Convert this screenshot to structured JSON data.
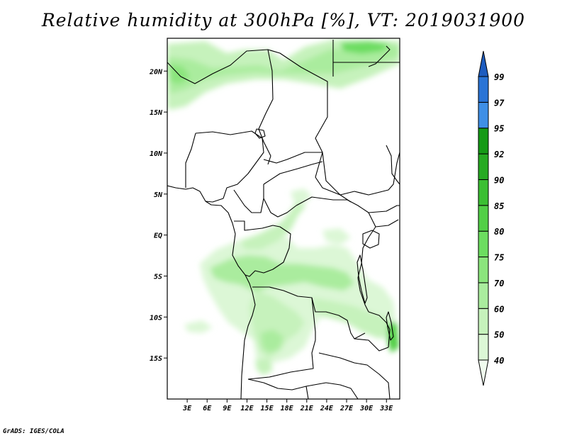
{
  "title": "Relative humidity at 300hPa [%], VT: 2019031900",
  "credit": "GrADS: IGES/COLA",
  "map": {
    "variable": "Relative humidity",
    "level": "300hPa",
    "units": "%",
    "valid_time": "2019031900",
    "lon_range": [
      0,
      35
    ],
    "lat_range": [
      -20,
      24
    ],
    "lat_labels": [
      {
        "lat": 20,
        "label": "20N"
      },
      {
        "lat": 15,
        "label": "15N"
      },
      {
        "lat": 10,
        "label": "10N"
      },
      {
        "lat": 5,
        "label": "5N"
      },
      {
        "lat": 0,
        "label": "EQ"
      },
      {
        "lat": -5,
        "label": "5S"
      },
      {
        "lat": -10,
        "label": "10S"
      },
      {
        "lat": -15,
        "label": "15S"
      }
    ],
    "lon_labels": [
      {
        "lon": 3,
        "label": "3E"
      },
      {
        "lon": 6,
        "label": "6E"
      },
      {
        "lon": 9,
        "label": "9E"
      },
      {
        "lon": 12,
        "label": "12E"
      },
      {
        "lon": 15,
        "label": "15E"
      },
      {
        "lon": 18,
        "label": "18E"
      },
      {
        "lon": 21,
        "label": "21E"
      },
      {
        "lon": 24,
        "label": "24E"
      },
      {
        "lon": 27,
        "label": "27E"
      },
      {
        "lon": 30,
        "label": "30E"
      },
      {
        "lon": 33,
        "label": "33E"
      }
    ]
  },
  "colorbar": {
    "levels": [
      "40",
      "50",
      "60",
      "70",
      "75",
      "80",
      "85",
      "90",
      "92",
      "95",
      "97",
      "99"
    ],
    "colors": [
      "#f0fbee",
      "#dcf7d6",
      "#c6f2bc",
      "#aaec9e",
      "#8be57d",
      "#6cdd60",
      "#52cf47",
      "#3bbf33",
      "#26aa22",
      "#159a16",
      "#3f8fe6",
      "#2a74d6",
      "#1d5cbf"
    ]
  }
}
